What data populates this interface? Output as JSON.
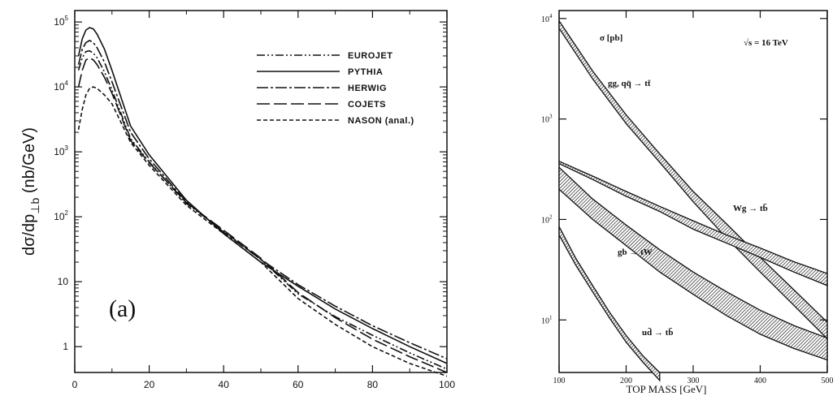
{
  "chart_data": [
    {
      "type": "line",
      "title": "",
      "panel_label": "(a)",
      "ylabel": "dσ/dp⊥b (nb/GeV)",
      "xlabel": "",
      "xlim": [
        0,
        100
      ],
      "ylim": [
        0.4,
        150000
      ],
      "yscale": "log",
      "x_ticks": [
        "0",
        "20",
        "40",
        "60",
        "80",
        "100"
      ],
      "y_ticks": [
        {
          "value": 1,
          "base": "1",
          "exp": ""
        },
        {
          "value": 10,
          "base": "10",
          "exp": ""
        },
        {
          "value": 100,
          "base": "10",
          "exp": "2"
        },
        {
          "value": 1000,
          "base": "10",
          "exp": "3"
        },
        {
          "value": 10000,
          "base": "10",
          "exp": "4"
        },
        {
          "value": 100000,
          "base": "10",
          "exp": "5"
        }
      ],
      "legend_position": "top-right",
      "series": [
        {
          "name": "EUROJET",
          "dash": "10,3,2,3,2,3",
          "x": [
            1,
            2,
            3,
            4,
            5,
            6,
            8,
            10,
            15,
            20,
            30,
            40,
            50,
            60,
            70,
            80,
            90,
            100
          ],
          "y": [
            18000,
            28000,
            35000,
            36000,
            33000,
            28000,
            17000,
            9000,
            1600,
            700,
            160,
            60,
            22,
            6.5,
            2.9,
            1.5,
            0.8,
            0.45
          ]
        },
        {
          "name": "PYTHIA",
          "dash": "",
          "x": [
            1,
            2,
            3,
            4,
            5,
            6,
            8,
            10,
            15,
            20,
            30,
            40,
            50,
            60,
            70,
            80,
            90,
            100
          ],
          "y": [
            30000,
            55000,
            75000,
            82000,
            78000,
            65000,
            38000,
            18000,
            2500,
            900,
            180,
            55,
            20,
            8.5,
            3.8,
            1.9,
            1.0,
            0.55
          ]
        },
        {
          "name": "HERWIG",
          "dash": "14,3,3,3",
          "x": [
            1,
            2,
            3,
            4,
            5,
            6,
            8,
            10,
            15,
            20,
            30,
            40,
            50,
            60,
            70,
            80,
            90,
            100
          ],
          "y": [
            22000,
            38000,
            48000,
            52000,
            48000,
            40000,
            24000,
            12000,
            2000,
            780,
            170,
            58,
            22,
            9.0,
            4.2,
            2.1,
            1.15,
            0.65
          ]
        },
        {
          "name": "COJETS",
          "dash": "16,5",
          "x": [
            1,
            2,
            3,
            4,
            5,
            6,
            8,
            10,
            15,
            20,
            30,
            40,
            50,
            60,
            70,
            80,
            90,
            100
          ],
          "y": [
            10000,
            18000,
            26000,
            28000,
            26000,
            22000,
            14000,
            8000,
            1500,
            680,
            165,
            62,
            23,
            6.8,
            2.8,
            1.3,
            0.7,
            0.4
          ]
        },
        {
          "name": "NASON (anal.)",
          "dash": "5,3",
          "x": [
            1,
            2,
            3,
            4,
            5,
            6,
            8,
            10,
            15,
            20,
            30,
            40,
            50,
            60,
            70,
            80,
            90,
            100
          ],
          "y": [
            2200,
            4500,
            7500,
            9500,
            10000,
            9500,
            7500,
            5500,
            1400,
            620,
            150,
            55,
            20,
            5.5,
            2.2,
            1.0,
            0.55,
            0.35
          ]
        }
      ]
    },
    {
      "type": "area",
      "title": "",
      "xlabel": "TOP MASS [GeV]",
      "ylabel": "",
      "xlim": [
        100,
        500
      ],
      "ylim": [
        3,
        12000
      ],
      "yscale": "log",
      "x_ticks": [
        "100",
        "200",
        "300",
        "400",
        "500"
      ],
      "y_ticks": [
        {
          "value": 10,
          "base": "10",
          "exp": "1"
        },
        {
          "value": 100,
          "base": "10",
          "exp": "2"
        },
        {
          "value": 1000,
          "base": "10",
          "exp": "3"
        },
        {
          "value": 10000,
          "base": "10",
          "exp": "4"
        }
      ],
      "annotations": [
        "σ [pb]",
        "√s = 16 TeV"
      ],
      "grid": false,
      "series": [
        {
          "name": "gg, qq̄ → tt̄",
          "x": [
            100,
            150,
            200,
            250,
            300,
            350,
            400,
            450,
            500
          ],
          "lower": [
            8000,
            2500,
            900,
            370,
            150,
            65,
            30,
            14,
            6.5
          ],
          "upper": [
            9500,
            3000,
            1100,
            450,
            190,
            90,
            42,
            20,
            9.5
          ]
        },
        {
          "name": "Wg → tb̄",
          "x": [
            100,
            150,
            200,
            250,
            300,
            350,
            400,
            450,
            500
          ],
          "lower": [
            360,
            250,
            170,
            120,
            80,
            58,
            42,
            30,
            22
          ],
          "upper": [
            380,
            270,
            190,
            135,
            97,
            70,
            52,
            38,
            29
          ]
        },
        {
          "name": "gb → tW",
          "x": [
            100,
            150,
            200,
            250,
            300,
            350,
            400,
            450,
            500
          ],
          "lower": [
            200,
            100,
            55,
            30,
            18,
            11,
            7.2,
            5.2,
            4.0
          ],
          "upper": [
            330,
            160,
            88,
            50,
            30,
            19,
            12.5,
            8.8,
            6.6
          ]
        },
        {
          "name": "ud̄ → tb̄",
          "x": [
            100,
            125,
            150,
            175,
            200,
            225,
            250
          ],
          "lower": [
            70,
            35,
            19,
            10.5,
            6.0,
            3.8,
            2.5
          ],
          "upper": [
            85,
            41,
            22,
            12.0,
            7.0,
            4.4,
            3.0
          ]
        }
      ],
      "band_labels": [
        "gg, qq̄ → tt̄",
        "Wg → tb̄",
        "gb → tW",
        "ud̄ → tb̄"
      ]
    }
  ]
}
